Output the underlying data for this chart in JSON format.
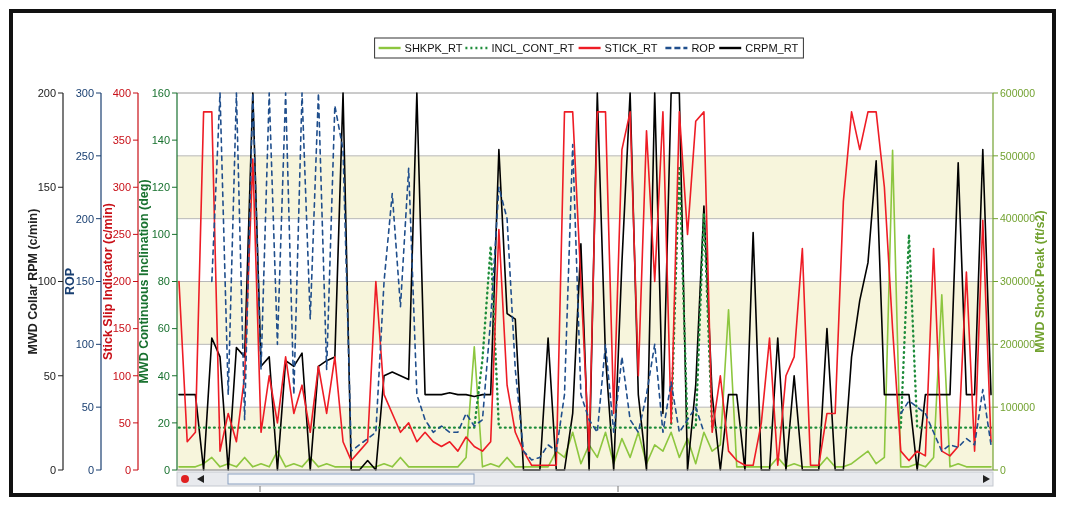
{
  "chart_data": [
    {
      "type": "line",
      "categories": [
        null,
        null,
        null,
        null,
        null,
        null,
        null,
        null,
        null,
        null,
        null,
        null,
        null,
        null,
        null,
        null,
        null,
        null,
        null,
        null,
        null,
        null,
        null,
        null,
        null,
        null,
        null,
        null,
        null,
        null,
        null,
        null,
        null,
        null,
        null,
        null,
        null,
        null,
        null,
        null,
        null,
        null,
        null,
        null,
        null,
        null,
        null,
        null,
        null,
        null,
        null,
        null,
        null,
        null,
        null,
        null,
        null,
        null,
        null,
        null,
        null,
        null,
        null,
        null,
        null,
        null,
        null,
        null,
        null,
        null,
        null,
        null,
        null,
        null,
        null,
        null,
        null,
        null,
        null,
        null,
        null,
        null,
        null,
        null,
        null,
        null,
        null,
        null,
        null,
        null,
        null,
        null,
        null,
        null,
        null,
        null,
        null,
        null,
        null,
        null
      ],
      "ylabel": "MWD Shock Peak (ft/s2)",
      "y2label": "MWD Collar RPM (c/min)",
      "ylim": [
        0,
        600000
      ],
      "yticks": [
        0,
        100000,
        200000,
        300000,
        400000,
        500000,
        600000
      ],
      "y2lim": [
        0,
        200
      ],
      "y2ticks": [
        0,
        50,
        100,
        150,
        200
      ],
      "grid": "y",
      "legend": "top",
      "bands": [
        {
          "axis": "y",
          "from": 0,
          "to": 100000,
          "color": "#f7f5dc"
        },
        {
          "axis": "y",
          "from": 200000,
          "to": 300000,
          "color": "#f7f5dc"
        },
        {
          "axis": "y",
          "from": 400000,
          "to": 500000,
          "color": "#f7f5dc"
        }
      ],
      "series": [
        {
          "name": "SHKPK_RT",
          "color": "#8dc63f",
          "axis": "y",
          "line_style": "solid",
          "values": [
            5000,
            5000,
            5000,
            10000,
            20000,
            5000,
            10000,
            5000,
            20000,
            5000,
            10000,
            5000,
            30000,
            5000,
            10000,
            5000,
            20000,
            5000,
            10000,
            5000,
            5000,
            5000,
            5000,
            5000,
            5000,
            10000,
            5000,
            20000,
            5000,
            5000,
            5000,
            5000,
            5000,
            5000,
            5000,
            20000,
            196000,
            5000,
            10000,
            5000,
            20000,
            5000,
            5000,
            5000,
            5000,
            5000,
            30000,
            20000,
            60000,
            10000,
            40000,
            20000,
            60000,
            10000,
            50000,
            20000,
            60000,
            10000,
            40000,
            30000,
            60000,
            20000,
            50000,
            10000,
            60000,
            30000,
            40000,
            255000,
            5000,
            5000,
            5000,
            5000,
            5000,
            20000,
            5000,
            10000,
            5000,
            5000,
            5000,
            20000,
            5000,
            5000,
            10000,
            20000,
            30000,
            10000,
            20000,
            509000,
            5000,
            5000,
            10000,
            5000,
            20000,
            279000,
            5000,
            10000,
            5000,
            5000,
            5000,
            5000
          ]
        },
        {
          "name": "CRPM_RT",
          "color": "#000000",
          "axis": "y2",
          "line_style": "solid",
          "values": [
            40,
            40,
            40,
            0,
            70,
            60,
            0,
            65,
            60,
            200,
            55,
            60,
            0,
            58,
            55,
            62,
            0,
            55,
            58,
            60,
            200,
            0,
            0,
            5,
            0,
            50,
            52,
            50,
            48,
            200,
            40,
            40,
            40,
            41,
            40,
            40,
            39,
            40,
            40,
            170,
            83,
            80,
            0,
            0,
            0,
            70,
            0,
            0,
            30,
            120,
            0,
            200,
            60,
            0,
            110,
            200,
            40,
            0,
            200,
            30,
            200,
            200,
            0,
            45,
            140,
            40,
            0,
            40,
            40,
            0,
            126,
            0,
            0,
            70,
            0,
            50,
            0,
            0,
            0,
            75,
            0,
            0,
            60,
            90,
            110,
            164,
            40,
            40,
            40,
            40,
            0,
            40,
            40,
            40,
            40,
            163,
            40,
            40,
            170,
            40
          ]
        }
      ]
    },
    {
      "type": "line",
      "categories": [
        null,
        null,
        null,
        null,
        null,
        null,
        null,
        null,
        null,
        null,
        null,
        null,
        null,
        null,
        null,
        null,
        null,
        null,
        null,
        null,
        null,
        null,
        null,
        null,
        null,
        null,
        null,
        null,
        null,
        null,
        null,
        null,
        null,
        null,
        null,
        null,
        null,
        null,
        null,
        null,
        null,
        null,
        null,
        null,
        null,
        null,
        null,
        null,
        null,
        null,
        null,
        null,
        null,
        null,
        null,
        null,
        null,
        null,
        null,
        null,
        null,
        null,
        null,
        null,
        null,
        null,
        null,
        null,
        null,
        null,
        null,
        null,
        null,
        null,
        null,
        null,
        null,
        null,
        null,
        null,
        null,
        null,
        null,
        null,
        null,
        null,
        null,
        null,
        null,
        null,
        null,
        null,
        null,
        null,
        null,
        null,
        null,
        null,
        null,
        null
      ],
      "ylabel": "MWD Continuous Inclination (deg)",
      "y2label": "Stick Slip Indicator (c/min)",
      "y3label": "ROP",
      "ylim": [
        0,
        160
      ],
      "yticks": [
        0,
        20,
        40,
        60,
        80,
        100,
        120,
        140,
        160
      ],
      "y2lim": [
        0,
        400
      ],
      "y2ticks": [
        0,
        50,
        100,
        150,
        200,
        250,
        300,
        350,
        400
      ],
      "y3lim": [
        0,
        300
      ],
      "y3ticks": [
        0,
        50,
        100,
        150,
        200,
        250,
        300
      ],
      "legend": "top",
      "series": [
        {
          "name": "INCL_CONT_RT",
          "color": "#1e8c3a",
          "axis": "y",
          "line_style": "dotted",
          "values": [
            18,
            18,
            18,
            18,
            18,
            18,
            18,
            18,
            18,
            18,
            18,
            18,
            18,
            18,
            18,
            18,
            18,
            18,
            18,
            18,
            18,
            18,
            18,
            18,
            18,
            18,
            18,
            18,
            18,
            18,
            18,
            18,
            18,
            18,
            18,
            18,
            18,
            47,
            95,
            18,
            18,
            18,
            18,
            18,
            18,
            18,
            18,
            18,
            18,
            18,
            18,
            18,
            18,
            18,
            18,
            18,
            18,
            18,
            18,
            18,
            18,
            129,
            18,
            18,
            109,
            18,
            18,
            18,
            18,
            18,
            18,
            18,
            18,
            18,
            18,
            18,
            18,
            18,
            18,
            18,
            18,
            18,
            18,
            18,
            18,
            18,
            18,
            18,
            18,
            100,
            18,
            18,
            18,
            18,
            18,
            18,
            18,
            18,
            18,
            18
          ]
        },
        {
          "name": "STICK_RT",
          "color": "#ee1c25",
          "axis": "y2",
          "line_style": "solid",
          "values": [
            200,
            30,
            40,
            380,
            380,
            20,
            60,
            30,
            100,
            330,
            40,
            100,
            50,
            120,
            60,
            90,
            40,
            110,
            60,
            120,
            30,
            10,
            20,
            30,
            200,
            80,
            60,
            40,
            50,
            30,
            40,
            30,
            25,
            30,
            20,
            35,
            25,
            20,
            30,
            255,
            90,
            40,
            20,
            5,
            5,
            5,
            5,
            380,
            380,
            200,
            20,
            380,
            380,
            60,
            340,
            380,
            100,
            360,
            200,
            380,
            50,
            380,
            250,
            370,
            380,
            40,
            100,
            20,
            10,
            5,
            5,
            50,
            140,
            5,
            100,
            120,
            235,
            5,
            5,
            60,
            60,
            285,
            380,
            340,
            380,
            380,
            300,
            150,
            20,
            10,
            20,
            15,
            235,
            20,
            15,
            25,
            210,
            20,
            265,
            30
          ]
        },
        {
          "name": "ROP",
          "color": "#1f4e8c",
          "axis": "y3",
          "line_style": "dashed",
          "values": [
            null,
            null,
            null,
            null,
            150,
            300,
            60,
            300,
            40,
            300,
            80,
            300,
            100,
            300,
            60,
            300,
            120,
            300,
            80,
            290,
            255,
            15,
            20,
            25,
            30,
            150,
            220,
            130,
            240,
            60,
            40,
            30,
            35,
            30,
            30,
            45,
            35,
            40,
            120,
            225,
            200,
            80,
            15,
            8,
            10,
            20,
            15,
            60,
            259,
            60,
            40,
            30,
            100,
            30,
            90,
            40,
            30,
            60,
            100,
            30,
            70,
            30,
            40,
            50,
            30,
            null,
            null,
            null,
            null,
            null,
            null,
            null,
            null,
            null,
            null,
            null,
            null,
            null,
            null,
            null,
            null,
            null,
            null,
            null,
            null,
            null,
            null,
            null,
            45,
            55,
            50,
            45,
            30,
            15,
            20,
            18,
            25,
            20,
            64,
            20
          ]
        }
      ]
    }
  ]
}
